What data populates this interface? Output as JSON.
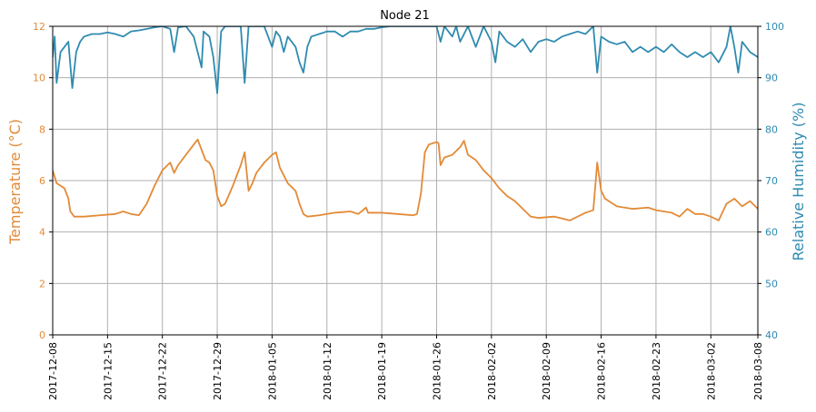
{
  "chart_data": {
    "type": "line",
    "title": "Node 21",
    "x": {
      "type": "date",
      "range": [
        "2017-12-08",
        "2018-03-08"
      ],
      "tick_labels": [
        "2017-12-08",
        "2017-12-15",
        "2017-12-22",
        "2017-12-29",
        "2018-01-05",
        "2018-01-12",
        "2018-01-19",
        "2018-01-26",
        "2018-02-02",
        "2018-02-09",
        "2018-02-16",
        "2018-02-23",
        "2018-03-02",
        "2018-03-08"
      ]
    },
    "y_left": {
      "label": "Temperature (°C)",
      "range": [
        0,
        12
      ],
      "ticks": [
        0,
        2,
        4,
        6,
        8,
        10,
        12
      ],
      "color": "#E38A37"
    },
    "y_right": {
      "label": "Relative Humidity (%)",
      "range": [
        40,
        100
      ],
      "ticks": [
        40,
        50,
        60,
        70,
        80,
        90,
        100
      ],
      "color": "#2F8BB0"
    },
    "grid": true,
    "series": [
      {
        "name": "",
        "axis": "left",
        "color": "#E38A37",
        "points": [
          [
            "2017-12-08",
            6.4
          ],
          [
            "2017-12-08T12",
            5.9
          ],
          [
            "2017-12-09",
            5.8
          ],
          [
            "2017-12-09T12",
            5.7
          ],
          [
            "2017-12-10",
            5.3
          ],
          [
            "2017-12-10T06",
            4.8
          ],
          [
            "2017-12-10T18",
            4.6
          ],
          [
            "2017-12-12",
            4.6
          ],
          [
            "2017-12-14",
            4.65
          ],
          [
            "2017-12-16",
            4.7
          ],
          [
            "2017-12-17",
            4.8
          ],
          [
            "2017-12-18",
            4.7
          ],
          [
            "2017-12-19",
            4.65
          ],
          [
            "2017-12-20",
            5.1
          ],
          [
            "2017-12-21",
            5.8
          ],
          [
            "2017-12-22",
            6.4
          ],
          [
            "2017-12-23",
            6.7
          ],
          [
            "2017-12-23T12",
            6.3
          ],
          [
            "2017-12-24",
            6.6
          ],
          [
            "2017-12-25",
            7.0
          ],
          [
            "2017-12-26",
            7.4
          ],
          [
            "2017-12-26T12",
            7.6
          ],
          [
            "2017-12-27",
            7.2
          ],
          [
            "2017-12-27T12",
            6.8
          ],
          [
            "2017-12-28",
            6.7
          ],
          [
            "2017-12-28T12",
            6.4
          ],
          [
            "2017-12-29",
            5.4
          ],
          [
            "2017-12-29T12",
            5.0
          ],
          [
            "2017-12-30",
            5.1
          ],
          [
            "2017-12-31",
            5.8
          ],
          [
            "2018-01-01",
            6.6
          ],
          [
            "2018-01-01T12",
            7.1
          ],
          [
            "2018-01-02",
            5.6
          ],
          [
            "2018-01-02T12",
            5.9
          ],
          [
            "2018-01-03",
            6.3
          ],
          [
            "2018-01-04",
            6.7
          ],
          [
            "2018-01-05",
            7.0
          ],
          [
            "2018-01-05T12",
            7.1
          ],
          [
            "2018-01-06",
            6.5
          ],
          [
            "2018-01-07",
            5.9
          ],
          [
            "2018-01-08",
            5.6
          ],
          [
            "2018-01-08T12",
            5.1
          ],
          [
            "2018-01-09",
            4.7
          ],
          [
            "2018-01-09T12",
            4.6
          ],
          [
            "2018-01-11",
            4.65
          ],
          [
            "2018-01-13",
            4.75
          ],
          [
            "2018-01-15",
            4.8
          ],
          [
            "2018-01-16",
            4.7
          ],
          [
            "2018-01-17",
            4.95
          ],
          [
            "2018-01-17T06",
            4.75
          ],
          [
            "2018-01-19",
            4.75
          ],
          [
            "2018-01-21",
            4.7
          ],
          [
            "2018-01-23",
            4.65
          ],
          [
            "2018-01-23T12",
            4.7
          ],
          [
            "2018-01-24",
            5.5
          ],
          [
            "2018-01-24T12",
            7.1
          ],
          [
            "2018-01-25",
            7.4
          ],
          [
            "2018-01-26",
            7.5
          ],
          [
            "2018-01-26T06",
            7.45
          ],
          [
            "2018-01-26T12",
            6.6
          ],
          [
            "2018-01-27",
            6.9
          ],
          [
            "2018-01-28",
            7.0
          ],
          [
            "2018-01-29",
            7.3
          ],
          [
            "2018-01-29T12",
            7.55
          ],
          [
            "2018-01-30",
            7.0
          ],
          [
            "2018-01-31",
            6.8
          ],
          [
            "2018-02-01",
            6.4
          ],
          [
            "2018-02-02",
            6.1
          ],
          [
            "2018-02-03",
            5.7
          ],
          [
            "2018-02-04",
            5.4
          ],
          [
            "2018-02-05",
            5.2
          ],
          [
            "2018-02-06",
            4.9
          ],
          [
            "2018-02-07",
            4.6
          ],
          [
            "2018-02-08",
            4.55
          ],
          [
            "2018-02-10",
            4.6
          ],
          [
            "2018-02-12",
            4.45
          ],
          [
            "2018-02-13",
            4.6
          ],
          [
            "2018-02-14",
            4.75
          ],
          [
            "2018-02-15",
            4.85
          ],
          [
            "2018-02-15T12",
            6.7
          ],
          [
            "2018-02-16",
            5.6
          ],
          [
            "2018-02-16T12",
            5.3
          ],
          [
            "2018-02-18",
            5.0
          ],
          [
            "2018-02-20",
            4.9
          ],
          [
            "2018-02-22",
            4.95
          ],
          [
            "2018-02-23",
            4.85
          ],
          [
            "2018-02-25",
            4.75
          ],
          [
            "2018-02-26",
            4.6
          ],
          [
            "2018-02-27",
            4.9
          ],
          [
            "2018-02-28",
            4.7
          ],
          [
            "2018-03-01",
            4.7
          ],
          [
            "2018-03-02",
            4.6
          ],
          [
            "2018-03-03",
            4.45
          ],
          [
            "2018-03-04",
            5.1
          ],
          [
            "2018-03-05",
            5.3
          ],
          [
            "2018-03-06",
            5.0
          ],
          [
            "2018-03-07",
            5.2
          ],
          [
            "2018-03-08",
            4.9
          ]
        ]
      },
      {
        "name": "",
        "axis": "right",
        "color": "#2F8BB0",
        "points": [
          [
            "2017-12-08",
            94
          ],
          [
            "2017-12-08T06",
            98
          ],
          [
            "2017-12-08T12",
            89
          ],
          [
            "2017-12-09",
            95
          ],
          [
            "2017-12-09T12",
            96
          ],
          [
            "2017-12-10",
            97
          ],
          [
            "2017-12-10T12",
            88
          ],
          [
            "2017-12-11",
            95
          ],
          [
            "2017-12-11T12",
            97
          ],
          [
            "2017-12-12",
            98
          ],
          [
            "2017-12-13",
            98.5
          ],
          [
            "2017-12-14",
            98.5
          ],
          [
            "2017-12-15",
            98.8
          ],
          [
            "2017-12-16",
            98.5
          ],
          [
            "2017-12-17",
            98
          ],
          [
            "2017-12-18",
            99
          ],
          [
            "2017-12-19",
            99.2
          ],
          [
            "2017-12-20",
            99.5
          ],
          [
            "2017-12-21",
            99.8
          ],
          [
            "2017-12-22",
            100
          ],
          [
            "2017-12-23",
            99.5
          ],
          [
            "2017-12-23T12",
            95
          ],
          [
            "2017-12-24",
            99.8
          ],
          [
            "2017-12-25",
            100
          ],
          [
            "2017-12-26",
            98
          ],
          [
            "2017-12-26T12",
            95
          ],
          [
            "2017-12-27",
            92
          ],
          [
            "2017-12-27T06",
            99
          ],
          [
            "2017-12-28",
            98
          ],
          [
            "2017-12-28T12",
            94
          ],
          [
            "2017-12-29",
            87
          ],
          [
            "2017-12-29T12",
            99
          ],
          [
            "2017-12-30",
            100
          ],
          [
            "2017-12-31",
            100
          ],
          [
            "2018-01-01",
            100
          ],
          [
            "2018-01-01T12",
            89
          ],
          [
            "2018-01-02",
            100
          ],
          [
            "2018-01-03",
            100
          ],
          [
            "2018-01-04",
            100
          ],
          [
            "2018-01-05",
            96
          ],
          [
            "2018-01-05T12",
            99
          ],
          [
            "2018-01-06",
            98
          ],
          [
            "2018-01-06T12",
            95
          ],
          [
            "2018-01-07",
            98
          ],
          [
            "2018-01-08",
            96
          ],
          [
            "2018-01-08T12",
            93
          ],
          [
            "2018-01-09",
            91
          ],
          [
            "2018-01-09T12",
            96
          ],
          [
            "2018-01-10",
            98
          ],
          [
            "2018-01-11",
            98.5
          ],
          [
            "2018-01-12",
            99
          ],
          [
            "2018-01-13",
            99
          ],
          [
            "2018-01-14",
            98
          ],
          [
            "2018-01-15",
            99
          ],
          [
            "2018-01-16",
            99
          ],
          [
            "2018-01-17",
            99.5
          ],
          [
            "2018-01-18",
            99.5
          ],
          [
            "2018-01-19",
            99.8
          ],
          [
            "2018-01-20",
            100
          ],
          [
            "2018-01-21",
            100
          ],
          [
            "2018-01-22",
            100
          ],
          [
            "2018-01-23",
            100
          ],
          [
            "2018-01-24",
            100
          ],
          [
            "2018-01-25",
            100
          ],
          [
            "2018-01-26",
            100
          ],
          [
            "2018-01-26T12",
            97
          ],
          [
            "2018-01-27",
            100
          ],
          [
            "2018-01-28",
            98
          ],
          [
            "2018-01-28T12",
            100
          ],
          [
            "2018-01-29",
            97
          ],
          [
            "2018-01-30",
            100
          ],
          [
            "2018-01-31",
            96
          ],
          [
            "2018-02-01",
            100
          ],
          [
            "2018-02-02",
            97
          ],
          [
            "2018-02-02T12",
            93
          ],
          [
            "2018-02-03",
            99
          ],
          [
            "2018-02-04",
            97
          ],
          [
            "2018-02-05",
            96
          ],
          [
            "2018-02-06",
            97.5
          ],
          [
            "2018-02-07",
            95
          ],
          [
            "2018-02-08",
            97
          ],
          [
            "2018-02-09",
            97.5
          ],
          [
            "2018-02-10",
            97
          ],
          [
            "2018-02-11",
            98
          ],
          [
            "2018-02-12",
            98.5
          ],
          [
            "2018-02-13",
            99
          ],
          [
            "2018-02-14",
            98.5
          ],
          [
            "2018-02-15",
            100
          ],
          [
            "2018-02-15T12",
            91
          ],
          [
            "2018-02-16",
            98
          ],
          [
            "2018-02-17",
            97
          ],
          [
            "2018-02-18",
            96.5
          ],
          [
            "2018-02-19",
            97
          ],
          [
            "2018-02-20",
            95
          ],
          [
            "2018-02-21",
            96
          ],
          [
            "2018-02-22",
            95
          ],
          [
            "2018-02-23",
            96
          ],
          [
            "2018-02-24",
            95
          ],
          [
            "2018-02-25",
            96.5
          ],
          [
            "2018-02-26",
            95
          ],
          [
            "2018-02-27",
            94
          ],
          [
            "2018-02-28",
            95
          ],
          [
            "2018-03-01",
            94
          ],
          [
            "2018-03-02",
            95
          ],
          [
            "2018-03-03",
            93
          ],
          [
            "2018-03-04",
            96
          ],
          [
            "2018-03-04T12",
            100
          ],
          [
            "2018-03-05",
            96
          ],
          [
            "2018-03-05T12",
            91
          ],
          [
            "2018-03-06",
            97
          ],
          [
            "2018-03-07",
            95
          ],
          [
            "2018-03-08",
            94
          ]
        ]
      }
    ]
  }
}
